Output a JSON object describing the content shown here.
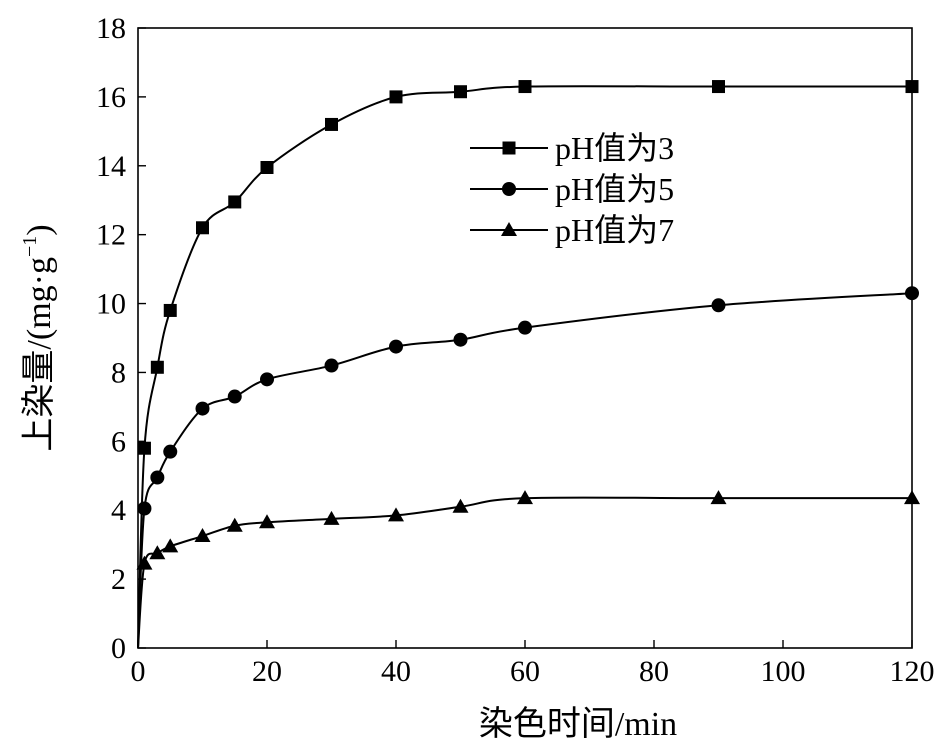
{
  "chart_data": {
    "type": "line",
    "title": "",
    "xlabel": "染色时间/min",
    "ylabel_main": "上染量/(mg·g",
    "ylabel_sup": "−1",
    "ylabel_tail": ")",
    "xlim": [
      0,
      120
    ],
    "ylim": [
      0,
      18
    ],
    "x_ticks": [
      0,
      20,
      40,
      60,
      80,
      100,
      120
    ],
    "y_ticks": [
      0,
      2,
      4,
      6,
      8,
      10,
      12,
      14,
      16,
      18
    ],
    "grid": false,
    "legend_position": "top-right",
    "series": [
      {
        "name": "pH值为3",
        "marker": "square",
        "x": [
          0,
          1,
          3,
          5,
          10,
          15,
          20,
          30,
          40,
          50,
          60,
          90,
          120
        ],
        "y": [
          0,
          5.8,
          8.15,
          9.8,
          12.2,
          12.95,
          13.95,
          15.2,
          16.0,
          16.15,
          16.3,
          16.3,
          16.3
        ]
      },
      {
        "name": "pH值为5",
        "marker": "circle",
        "x": [
          0,
          1,
          3,
          5,
          10,
          15,
          20,
          30,
          40,
          50,
          60,
          90,
          120
        ],
        "y": [
          0,
          4.05,
          4.95,
          5.7,
          6.95,
          7.3,
          7.8,
          8.2,
          8.75,
          8.95,
          9.3,
          9.95,
          10.3
        ]
      },
      {
        "name": "pH值为7",
        "marker": "triangle",
        "x": [
          0,
          1,
          3,
          5,
          10,
          15,
          20,
          30,
          40,
          50,
          60,
          90,
          120
        ],
        "y": [
          0,
          2.45,
          2.75,
          2.95,
          3.25,
          3.55,
          3.65,
          3.75,
          3.85,
          4.1,
          4.35,
          4.35,
          4.35
        ]
      }
    ]
  }
}
